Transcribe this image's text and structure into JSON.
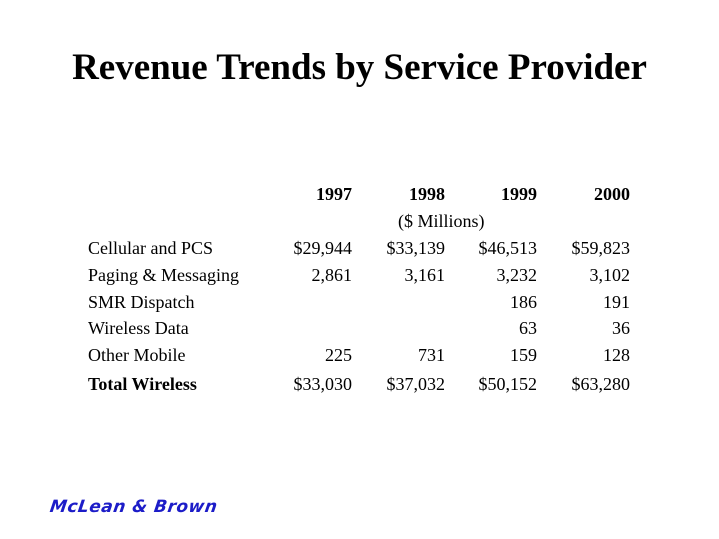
{
  "slide": {
    "title": "Revenue Trends by Service Provider"
  },
  "table": {
    "years": [
      "1997",
      "1998",
      "1999",
      "2000"
    ],
    "units": "($ Millions)",
    "rows": [
      {
        "label": "Cellular and PCS",
        "values": [
          "$29,944",
          "$33,139",
          "$46,513",
          "$59,823"
        ]
      },
      {
        "label": "Paging & Messaging",
        "values": [
          "2,861",
          "3,161",
          "3,232",
          "3,102"
        ]
      },
      {
        "label": "SMR Dispatch",
        "values": [
          "",
          "",
          "186",
          "191"
        ]
      },
      {
        "label": "Wireless Data",
        "values": [
          "",
          "",
          "63",
          "36"
        ]
      },
      {
        "label": "Other Mobile",
        "values": [
          "225",
          "731",
          "159",
          "128"
        ]
      }
    ],
    "total": {
      "label": "Total Wireless",
      "values": [
        "$33,030",
        "$37,032",
        "$50,152",
        "$63,280"
      ]
    }
  },
  "footer": {
    "logo_text": "McLean & Brown"
  }
}
